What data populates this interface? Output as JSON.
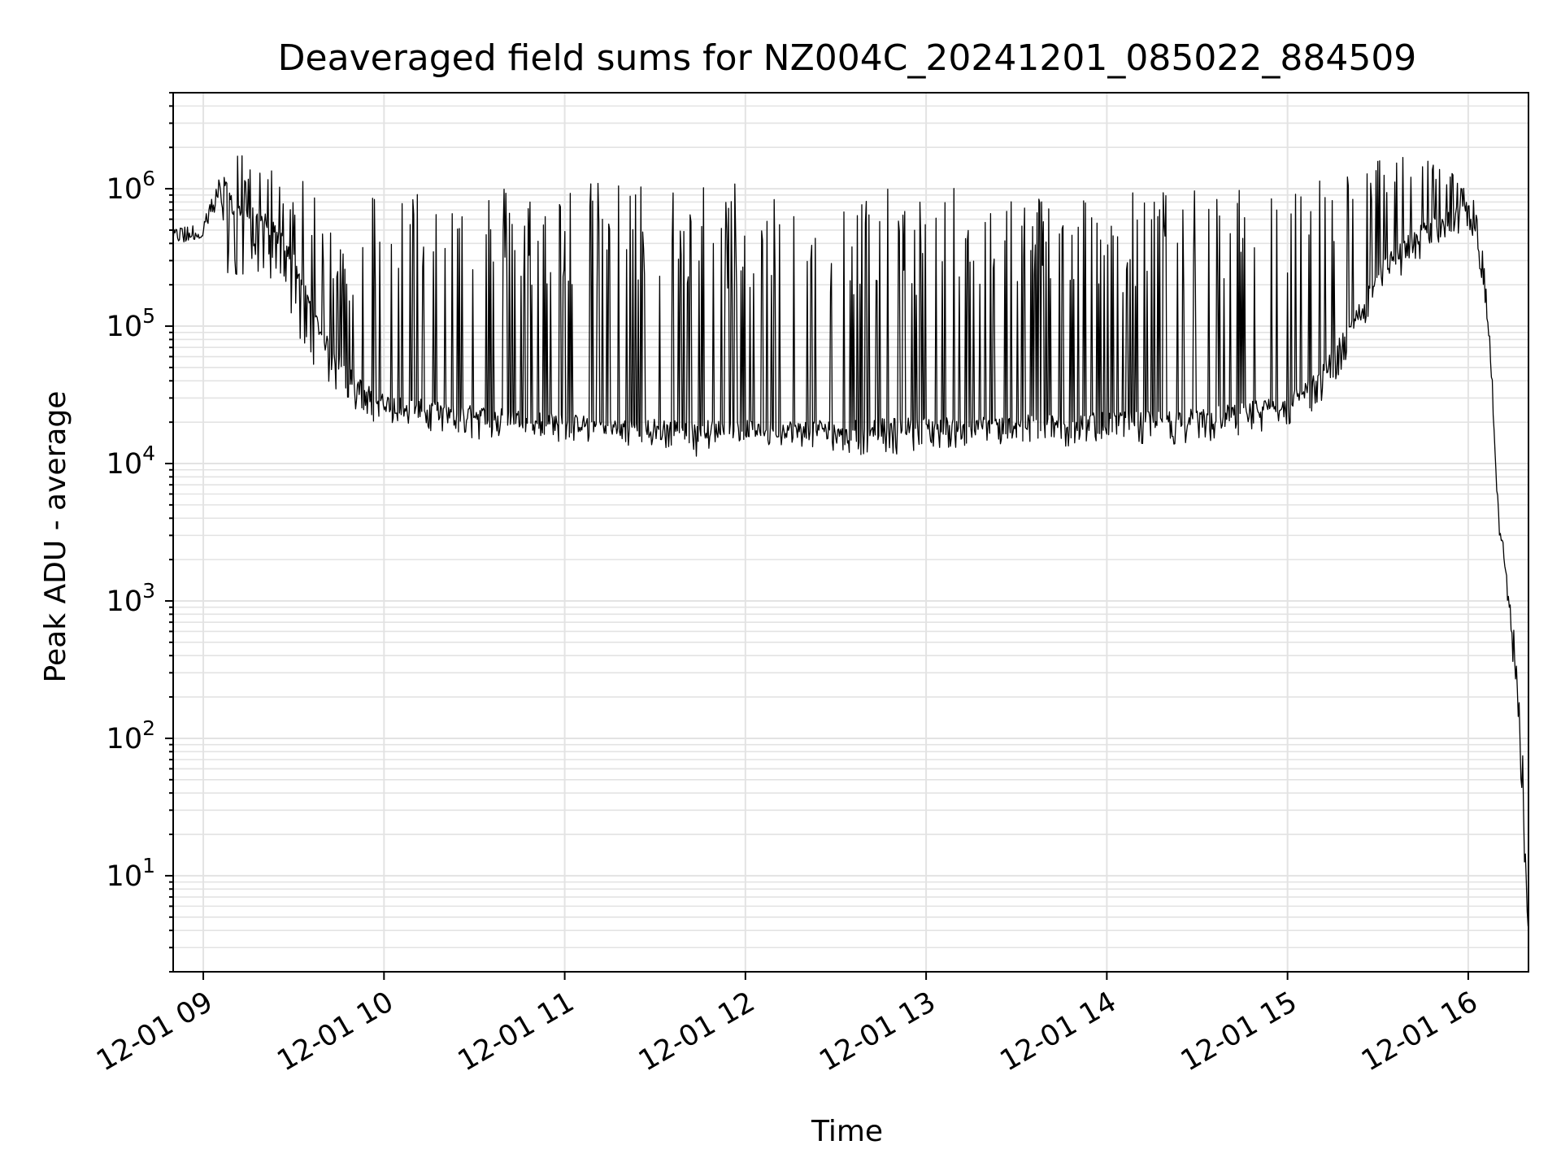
{
  "chart_data": {
    "type": "line",
    "title": "Deaveraged field sums for NZ004C_20241201_085022_884509",
    "xlabel": "Time",
    "ylabel": "Peak ADU - average",
    "yscale": "log",
    "ylim": [
      2,
      5000000
    ],
    "xlim": [
      "2024-12-01 08:50",
      "2024-12-01 16:20"
    ],
    "x_ticks": [
      {
        "value": "2024-12-01 09:00",
        "label": "12-01 09"
      },
      {
        "value": "2024-12-01 10:00",
        "label": "12-01 10"
      },
      {
        "value": "2024-12-01 11:00",
        "label": "12-01 11"
      },
      {
        "value": "2024-12-01 12:00",
        "label": "12-01 12"
      },
      {
        "value": "2024-12-01 13:00",
        "label": "12-01 13"
      },
      {
        "value": "2024-12-01 14:00",
        "label": "12-01 14"
      },
      {
        "value": "2024-12-01 15:00",
        "label": "12-01 15"
      },
      {
        "value": "2024-12-01 16:00",
        "label": "12-01 16"
      }
    ],
    "y_ticks": [
      {
        "value": 10,
        "base": "10",
        "exp": "1"
      },
      {
        "value": 100,
        "base": "10",
        "exp": "2"
      },
      {
        "value": 1000,
        "base": "10",
        "exp": "3"
      },
      {
        "value": 10000,
        "base": "10",
        "exp": "4"
      },
      {
        "value": 100000,
        "base": "10",
        "exp": "5"
      },
      {
        "value": 1000000,
        "base": "10",
        "exp": "6"
      }
    ],
    "grid": true,
    "line_color": "#000000",
    "series": [
      {
        "x": [
          "2024-12-01 08:50",
          "2024-12-01 08:55",
          "2024-12-01 09:00",
          "2024-12-01 09:03",
          "2024-12-01 09:06",
          "2024-12-01 09:08",
          "2024-12-01 09:10",
          "2024-12-01 09:15",
          "2024-12-01 09:20",
          "2024-12-01 09:25",
          "2024-12-01 09:30",
          "2024-12-01 09:35",
          "2024-12-01 09:40",
          "2024-12-01 09:45",
          "2024-12-01 09:50",
          "2024-12-01 09:55",
          "2024-12-01 10:00",
          "2024-12-01 10:10",
          "2024-12-01 10:20",
          "2024-12-01 10:30",
          "2024-12-01 10:40",
          "2024-12-01 10:50",
          "2024-12-01 11:00",
          "2024-12-01 11:15",
          "2024-12-01 11:30",
          "2024-12-01 11:45",
          "2024-12-01 12:00",
          "2024-12-01 12:15",
          "2024-12-01 12:30",
          "2024-12-01 12:45",
          "2024-12-01 13:00",
          "2024-12-01 13:15",
          "2024-12-01 13:30",
          "2024-12-01 13:45",
          "2024-12-01 14:00",
          "2024-12-01 14:15",
          "2024-12-01 14:30",
          "2024-12-01 14:45",
          "2024-12-01 15:00",
          "2024-12-01 15:10",
          "2024-12-01 15:20",
          "2024-12-01 15:30",
          "2024-12-01 15:40",
          "2024-12-01 15:50",
          "2024-12-01 16:00",
          "2024-12-01 16:02",
          "2024-12-01 16:04",
          "2024-12-01 16:06",
          "2024-12-01 16:08",
          "2024-12-01 16:10",
          "2024-12-01 16:12",
          "2024-12-01 16:14",
          "2024-12-01 16:16",
          "2024-12-01 16:18",
          "2024-12-01 16:20"
        ],
        "y": [
          450000,
          480000,
          500000,
          700000,
          900000,
          1000000,
          700000,
          650000,
          600000,
          450000,
          300000,
          150000,
          80000,
          55000,
          40000,
          32000,
          28000,
          26000,
          24000,
          23000,
          22000,
          21000,
          20000,
          19000,
          18500,
          18000,
          18000,
          18000,
          18500,
          18500,
          19000,
          19000,
          19500,
          20000,
          20500,
          21000,
          22000,
          24000,
          28000,
          40000,
          90000,
          250000,
          400000,
          600000,
          700000,
          500000,
          300000,
          150000,
          40000,
          4000,
          2000,
          800,
          300,
          40,
          4
        ],
        "y_max": [
          500000,
          550000,
          600000,
          900000,
          1300000,
          1400000,
          2600000,
          1400000,
          1700000,
          1200000,
          1200000,
          1100000,
          600000,
          500000,
          350000,
          1100000,
          1100000,
          1150000,
          1150000,
          1200000,
          1150000,
          1150000,
          1150000,
          1150000,
          1200000,
          1200000,
          1200000,
          1100000,
          1050000,
          1000000,
          1000000,
          1050000,
          1000000,
          1050000,
          1000000,
          1000000,
          1000000,
          1000000,
          1100000,
          1300000,
          1500000,
          1700000,
          1700000,
          1900000,
          1000000,
          800000,
          500000,
          200000,
          50000,
          5000,
          2500,
          1500,
          400,
          80,
          30
        ],
        "y_min": [
          380000,
          400000,
          450000,
          600000,
          700000,
          250000,
          160000,
          300000,
          200000,
          150000,
          90000,
          60000,
          40000,
          30000,
          25000,
          20000,
          20000,
          18000,
          16000,
          15000,
          15000,
          14000,
          14000,
          14000,
          13000,
          11000,
          14000,
          13000,
          12000,
          11000,
          13000,
          13000,
          14000,
          13000,
          14000,
          13500,
          14000,
          15000,
          18000,
          25000,
          50000,
          150000,
          250000,
          400000,
          500000,
          400000,
          250000,
          120000,
          30000,
          3000,
          1500,
          500,
          200,
          25,
          3
        ]
      }
    ]
  }
}
